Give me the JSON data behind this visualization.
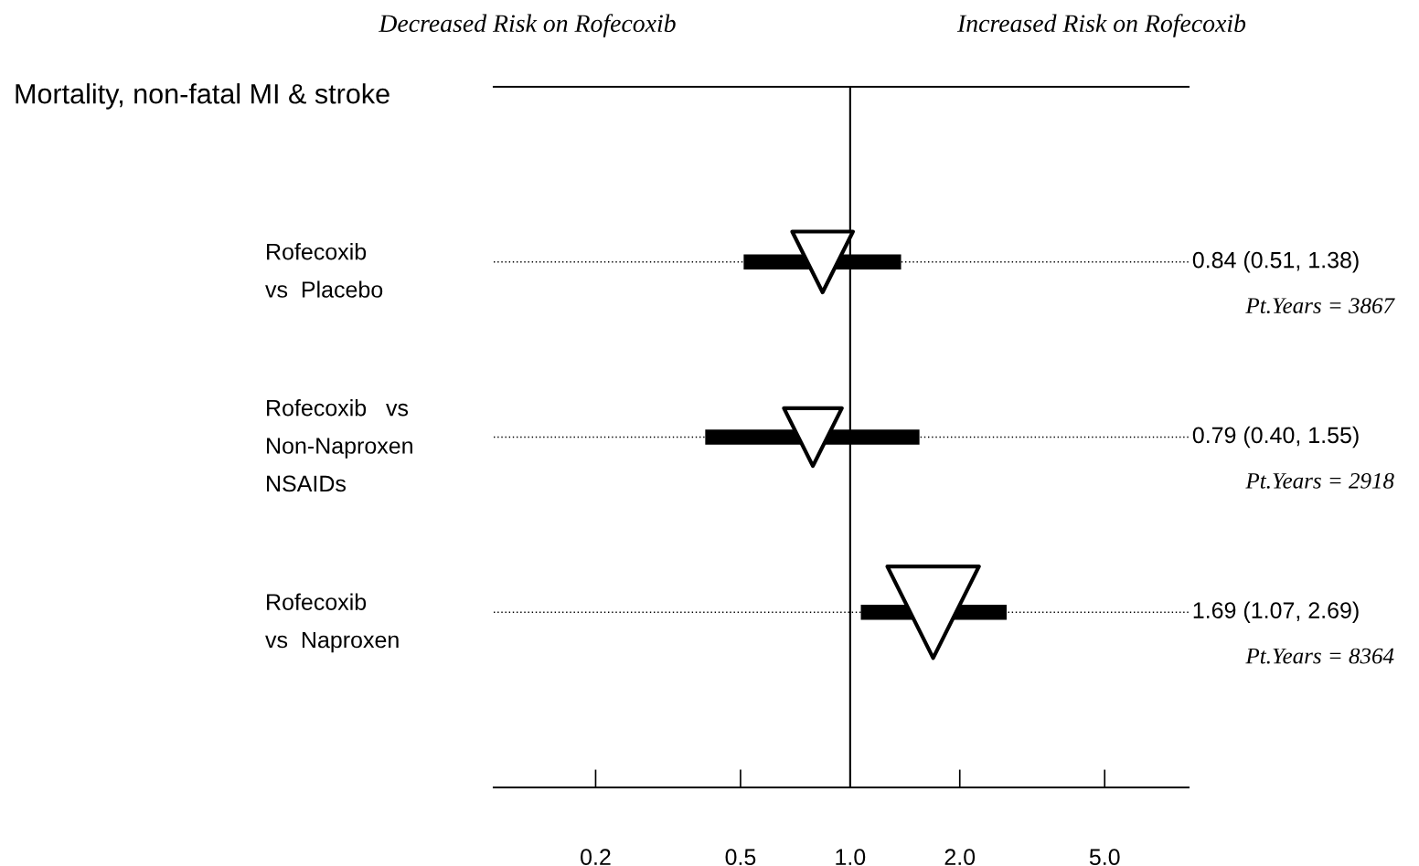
{
  "chart_data": {
    "type": "bubble",
    "title": "Mortality, non-fatal MI & stroke",
    "orientation": "horizontal",
    "categories": [
      "Rofecoxib\nvs  Placebo",
      "Rofecoxib   vs\nNon-Naproxen\nNSAIDs",
      "Rofecoxib\nvs  Naproxen"
    ],
    "values": [
      0.84,
      0.79,
      1.69
    ],
    "errors": [
      [
        0.51,
        1.38
      ],
      [
        0.4,
        1.55
      ],
      [
        1.07,
        2.69
      ]
    ],
    "sizes": [
      0.44,
      0.4,
      1
    ],
    "value_labels": [
      "0.84 (0.51, 1.38)",
      "0.79 (0.40, 1.55)",
      "1.69 (1.07, 2.69)"
    ],
    "color": "#ffffff",
    "marker": "triangle",
    "log": "x",
    "xlim": [
      0.105,
      8.5
    ],
    "xticks": [
      0.2,
      0.5,
      {
        "value": 1,
        "label": "1.0"
      },
      {
        "value": 2,
        "label": "2.0"
      },
      {
        "value": 5,
        "label": "5.0"
      }
    ],
    "ref_lines": [
      {
        "axis": "x",
        "value": 1.0,
        "color": "#000000"
      }
    ],
    "grid": "y",
    "annotations": [
      "Decreased Risk on Rofecoxib",
      "Increased Risk on Rofecoxib",
      "Pt.Years = 3867",
      "Pt.Years = 2918",
      "Pt.Years = 8364"
    ]
  }
}
